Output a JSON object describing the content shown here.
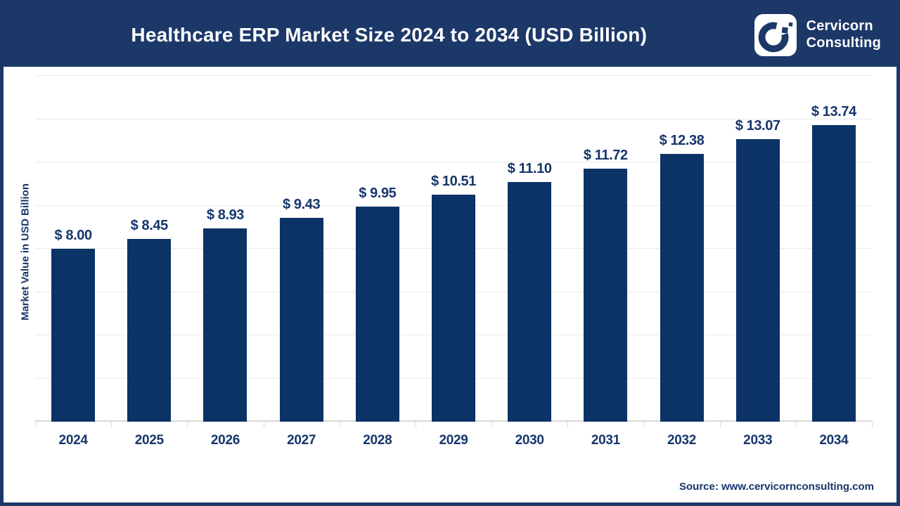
{
  "header": {
    "title": "Healthcare ERP Market Size 2024 to 2034 (USD Billion)",
    "brand_line1": "Cervicorn",
    "brand_line2": "Consulting"
  },
  "chart_data": {
    "type": "bar",
    "title": "Healthcare ERP Market Size 2024 to 2034 (USD Billion)",
    "categories": [
      "2024",
      "2025",
      "2026",
      "2027",
      "2028",
      "2029",
      "2030",
      "2031",
      "2032",
      "2033",
      "2034"
    ],
    "values": [
      8.0,
      8.45,
      8.93,
      9.43,
      9.95,
      10.51,
      11.1,
      11.72,
      12.38,
      13.07,
      13.74
    ],
    "value_labels": [
      "$ 8.00",
      "$ 8.45",
      "$ 8.93",
      "$ 9.43",
      "$ 9.95",
      "$ 10.51",
      "$ 11.10",
      "$ 11.72",
      "$ 12.38",
      "$ 13.07",
      "$ 13.74"
    ],
    "xlabel": "",
    "ylabel": "Market Value in USD Billion",
    "ylim": [
      0,
      16
    ],
    "gridline_step": 2,
    "grid": "horizontal",
    "legend": "none",
    "bar_color": "#0b3366",
    "label_color": "#17366b"
  },
  "footer": {
    "source": "Source: www.cervicornconsulting.com"
  },
  "colors": {
    "header_bg": "#1c3869",
    "border": "#1c3869",
    "bar": "#0b3366",
    "text_navy": "#17366b",
    "gridline": "#e9e9e9",
    "axis": "#d9d9d9"
  }
}
